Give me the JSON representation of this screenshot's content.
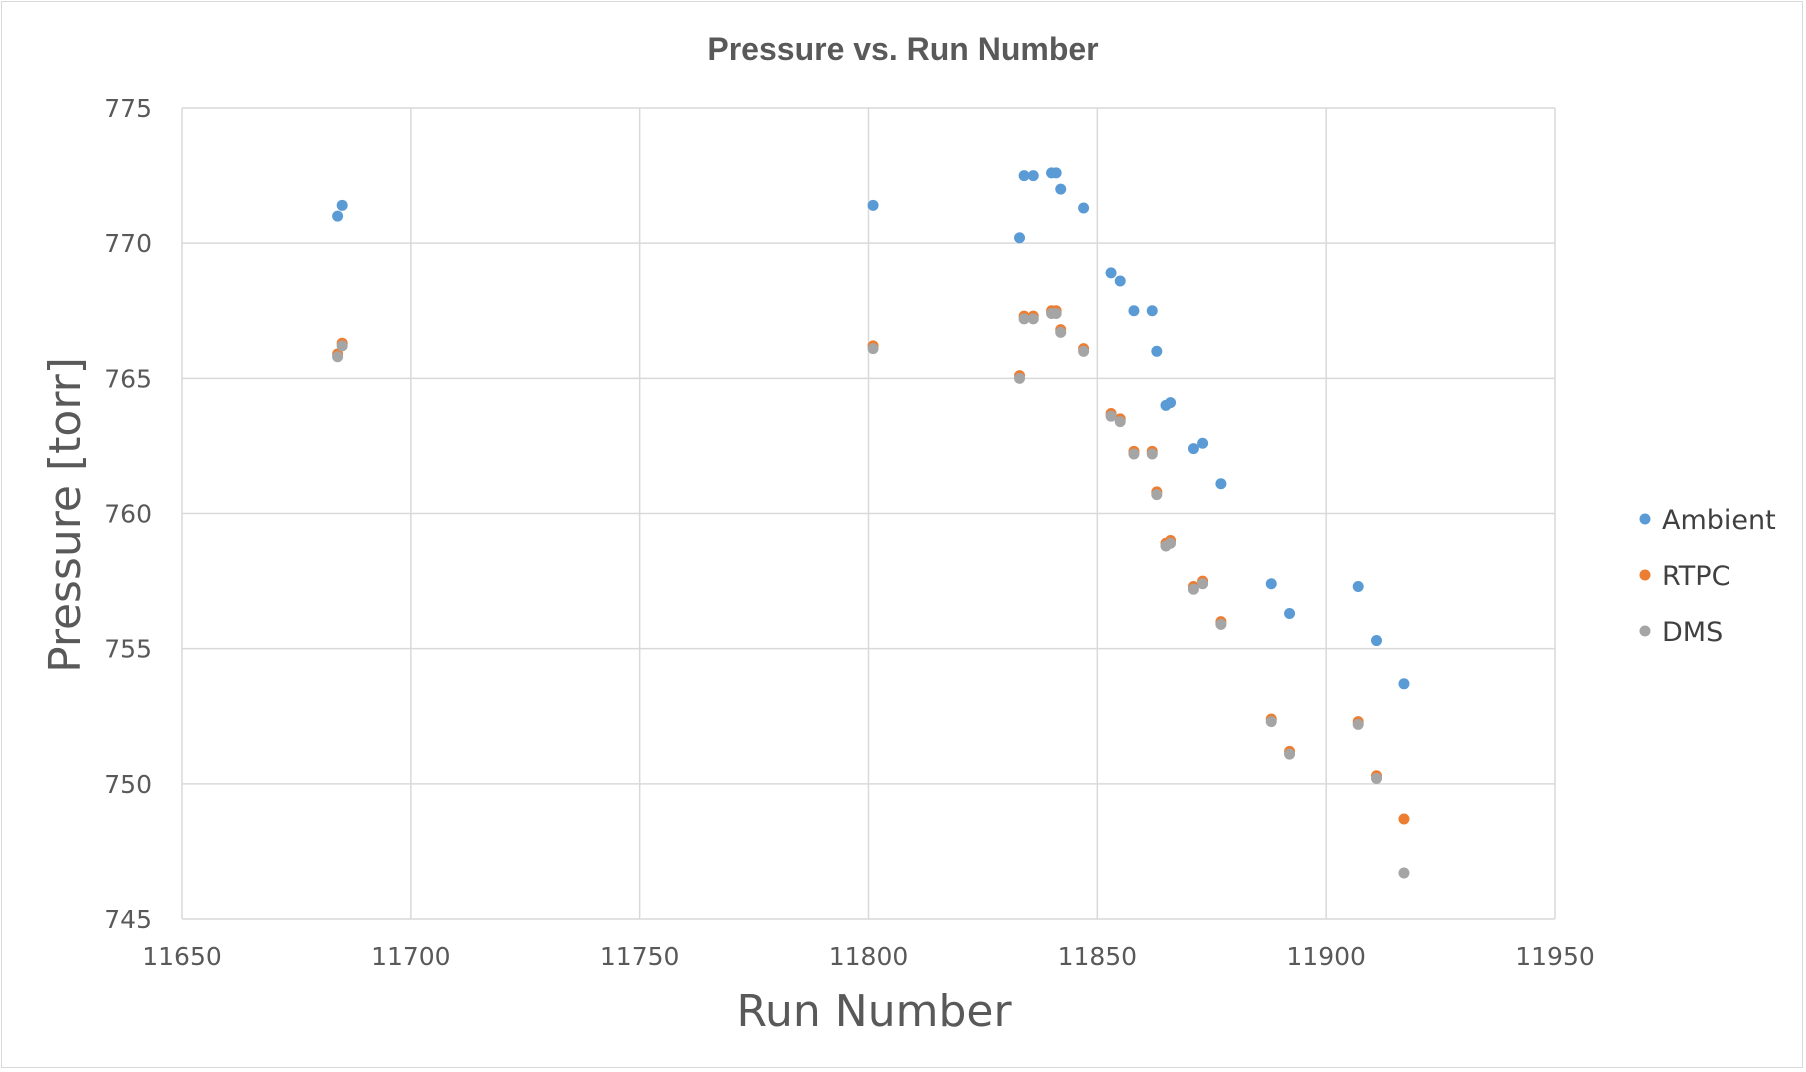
{
  "chart_data": {
    "type": "scatter",
    "title": "Pressure vs. Run Number",
    "xlabel": "Run Number",
    "ylabel": "Pressure [torr]",
    "xlim": [
      11650,
      11950
    ],
    "ylim": [
      745,
      775
    ],
    "xticks": [
      11650,
      11700,
      11750,
      11800,
      11850,
      11900,
      11950
    ],
    "yticks": [
      745,
      750,
      755,
      760,
      765,
      770,
      775
    ],
    "xtick_labels": [
      "11650",
      "11700",
      "11750",
      "11800",
      "11850",
      "11900",
      "11950"
    ],
    "ytick_labels": [
      "745",
      "750",
      "755",
      "760",
      "765",
      "770",
      "775"
    ],
    "grid": true,
    "legend_position": "right",
    "series": [
      {
        "name": "Ambient",
        "color": "#5b9bd5",
        "points": [
          [
            11684,
            771.0
          ],
          [
            11685,
            771.4
          ],
          [
            11801,
            771.4
          ],
          [
            11833,
            770.2
          ],
          [
            11834,
            772.5
          ],
          [
            11836,
            772.5
          ],
          [
            11840,
            772.6
          ],
          [
            11841,
            772.6
          ],
          [
            11842,
            772.0
          ],
          [
            11847,
            771.3
          ],
          [
            11853,
            768.9
          ],
          [
            11855,
            768.6
          ],
          [
            11858,
            767.5
          ],
          [
            11862,
            767.5
          ],
          [
            11863,
            766.0
          ],
          [
            11865,
            764.0
          ],
          [
            11866,
            764.1
          ],
          [
            11871,
            762.4
          ],
          [
            11873,
            762.6
          ],
          [
            11877,
            761.1
          ],
          [
            11888,
            757.4
          ],
          [
            11892,
            756.3
          ],
          [
            11907,
            757.3
          ],
          [
            11911,
            755.3
          ],
          [
            11917,
            753.7
          ]
        ]
      },
      {
        "name": "RTPC",
        "color": "#ed7d31",
        "points": [
          [
            11684,
            765.9
          ],
          [
            11685,
            766.3
          ],
          [
            11801,
            766.2
          ],
          [
            11833,
            765.1
          ],
          [
            11834,
            767.3
          ],
          [
            11836,
            767.3
          ],
          [
            11840,
            767.5
          ],
          [
            11841,
            767.5
          ],
          [
            11842,
            766.8
          ],
          [
            11847,
            766.1
          ],
          [
            11853,
            763.7
          ],
          [
            11855,
            763.5
          ],
          [
            11858,
            762.3
          ],
          [
            11862,
            762.3
          ],
          [
            11863,
            760.8
          ],
          [
            11865,
            758.9
          ],
          [
            11866,
            759.0
          ],
          [
            11871,
            757.3
          ],
          [
            11873,
            757.5
          ],
          [
            11877,
            756.0
          ],
          [
            11888,
            752.4
          ],
          [
            11892,
            751.2
          ],
          [
            11907,
            752.3
          ],
          [
            11911,
            750.3
          ],
          [
            11917,
            748.7
          ]
        ]
      },
      {
        "name": "DMS",
        "color": "#a5a5a5",
        "points": [
          [
            11684,
            765.8
          ],
          [
            11685,
            766.2
          ],
          [
            11801,
            766.1
          ],
          [
            11833,
            765.0
          ],
          [
            11834,
            767.2
          ],
          [
            11836,
            767.2
          ],
          [
            11840,
            767.4
          ],
          [
            11841,
            767.4
          ],
          [
            11842,
            766.7
          ],
          [
            11847,
            766.0
          ],
          [
            11853,
            763.6
          ],
          [
            11855,
            763.4
          ],
          [
            11858,
            762.2
          ],
          [
            11862,
            762.2
          ],
          [
            11863,
            760.7
          ],
          [
            11865,
            758.8
          ],
          [
            11866,
            758.9
          ],
          [
            11871,
            757.2
          ],
          [
            11873,
            757.4
          ],
          [
            11877,
            755.9
          ],
          [
            11888,
            752.3
          ],
          [
            11892,
            751.1
          ],
          [
            11907,
            752.2
          ],
          [
            11911,
            750.2
          ],
          [
            11917,
            746.7
          ]
        ]
      }
    ]
  }
}
